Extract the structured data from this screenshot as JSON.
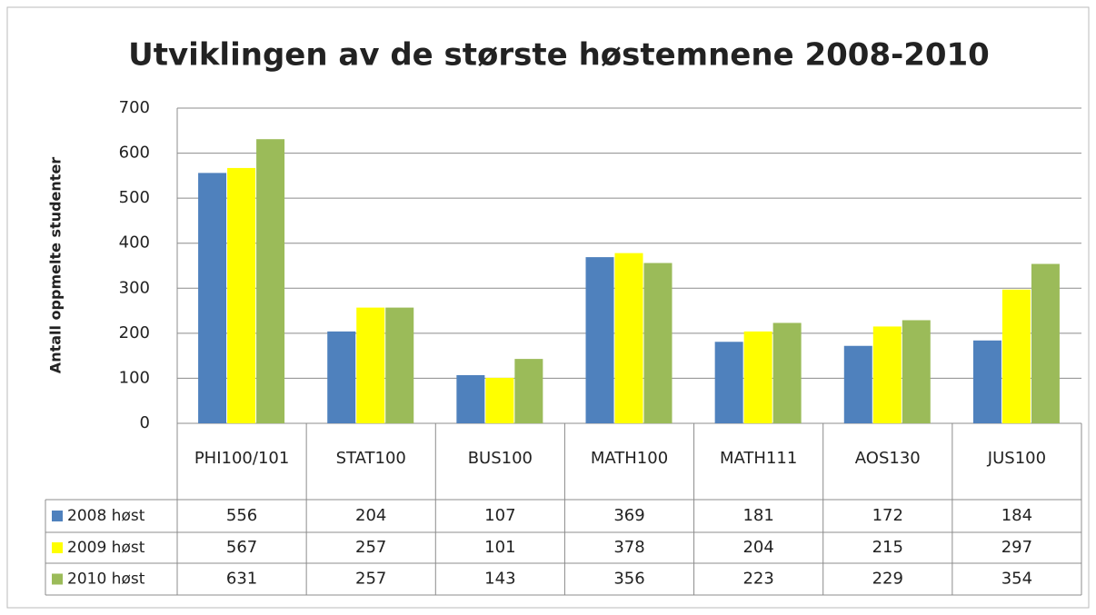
{
  "chart_data": {
    "type": "bar",
    "title": "Utviklingen av de største høstemnene 2008-2010",
    "y_label": "Antall oppmelte studenter",
    "categories": [
      "PHI100/101",
      "STAT100",
      "BUS100",
      "MATH100",
      "MATH111",
      "AOS130",
      "JUS100"
    ],
    "series": [
      {
        "name": "2008 høst",
        "color": "#4f81bd",
        "values": [
          556,
          204,
          107,
          369,
          181,
          172,
          184
        ]
      },
      {
        "name": "2009 høst",
        "color": "#ffff00",
        "values": [
          567,
          257,
          101,
          378,
          204,
          215,
          297
        ]
      },
      {
        "name": "2010 høst",
        "color": "#9bbb59",
        "values": [
          631,
          257,
          143,
          356,
          223,
          229,
          354
        ]
      }
    ],
    "ylim": [
      0,
      700
    ],
    "yticks": [
      0,
      100,
      200,
      300,
      400,
      500,
      600,
      700
    ],
    "grid": true,
    "data_table": true
  }
}
